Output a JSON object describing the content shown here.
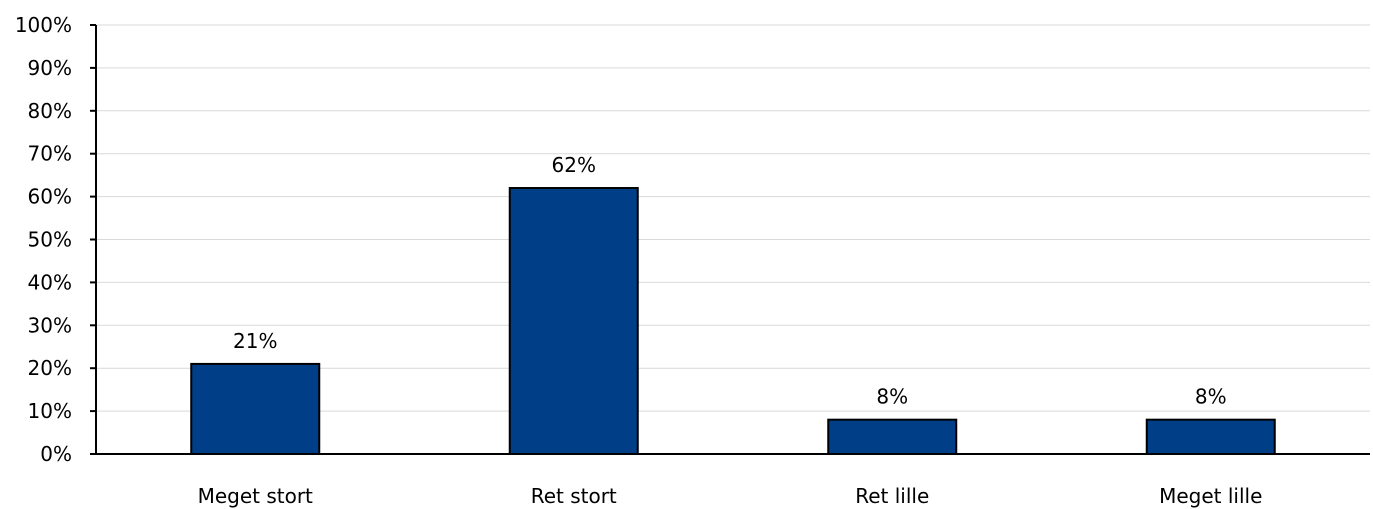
{
  "chart_data": {
    "type": "bar",
    "categories": [
      "Meget stort",
      "Ret stort",
      "Ret lille",
      "Meget lille"
    ],
    "values": [
      21,
      62,
      8,
      8
    ],
    "data_labels": [
      "21%",
      "62%",
      "8%",
      "8%"
    ],
    "ylim": [
      0,
      100
    ],
    "yticks": [
      0,
      10,
      20,
      30,
      40,
      50,
      60,
      70,
      80,
      90,
      100
    ],
    "ytick_labels": [
      "0%",
      "10%",
      "20%",
      "30%",
      "40%",
      "50%",
      "60%",
      "70%",
      "80%",
      "90%",
      "100%"
    ],
    "grid": true,
    "legend": "none",
    "bar_color": "#003f87"
  }
}
